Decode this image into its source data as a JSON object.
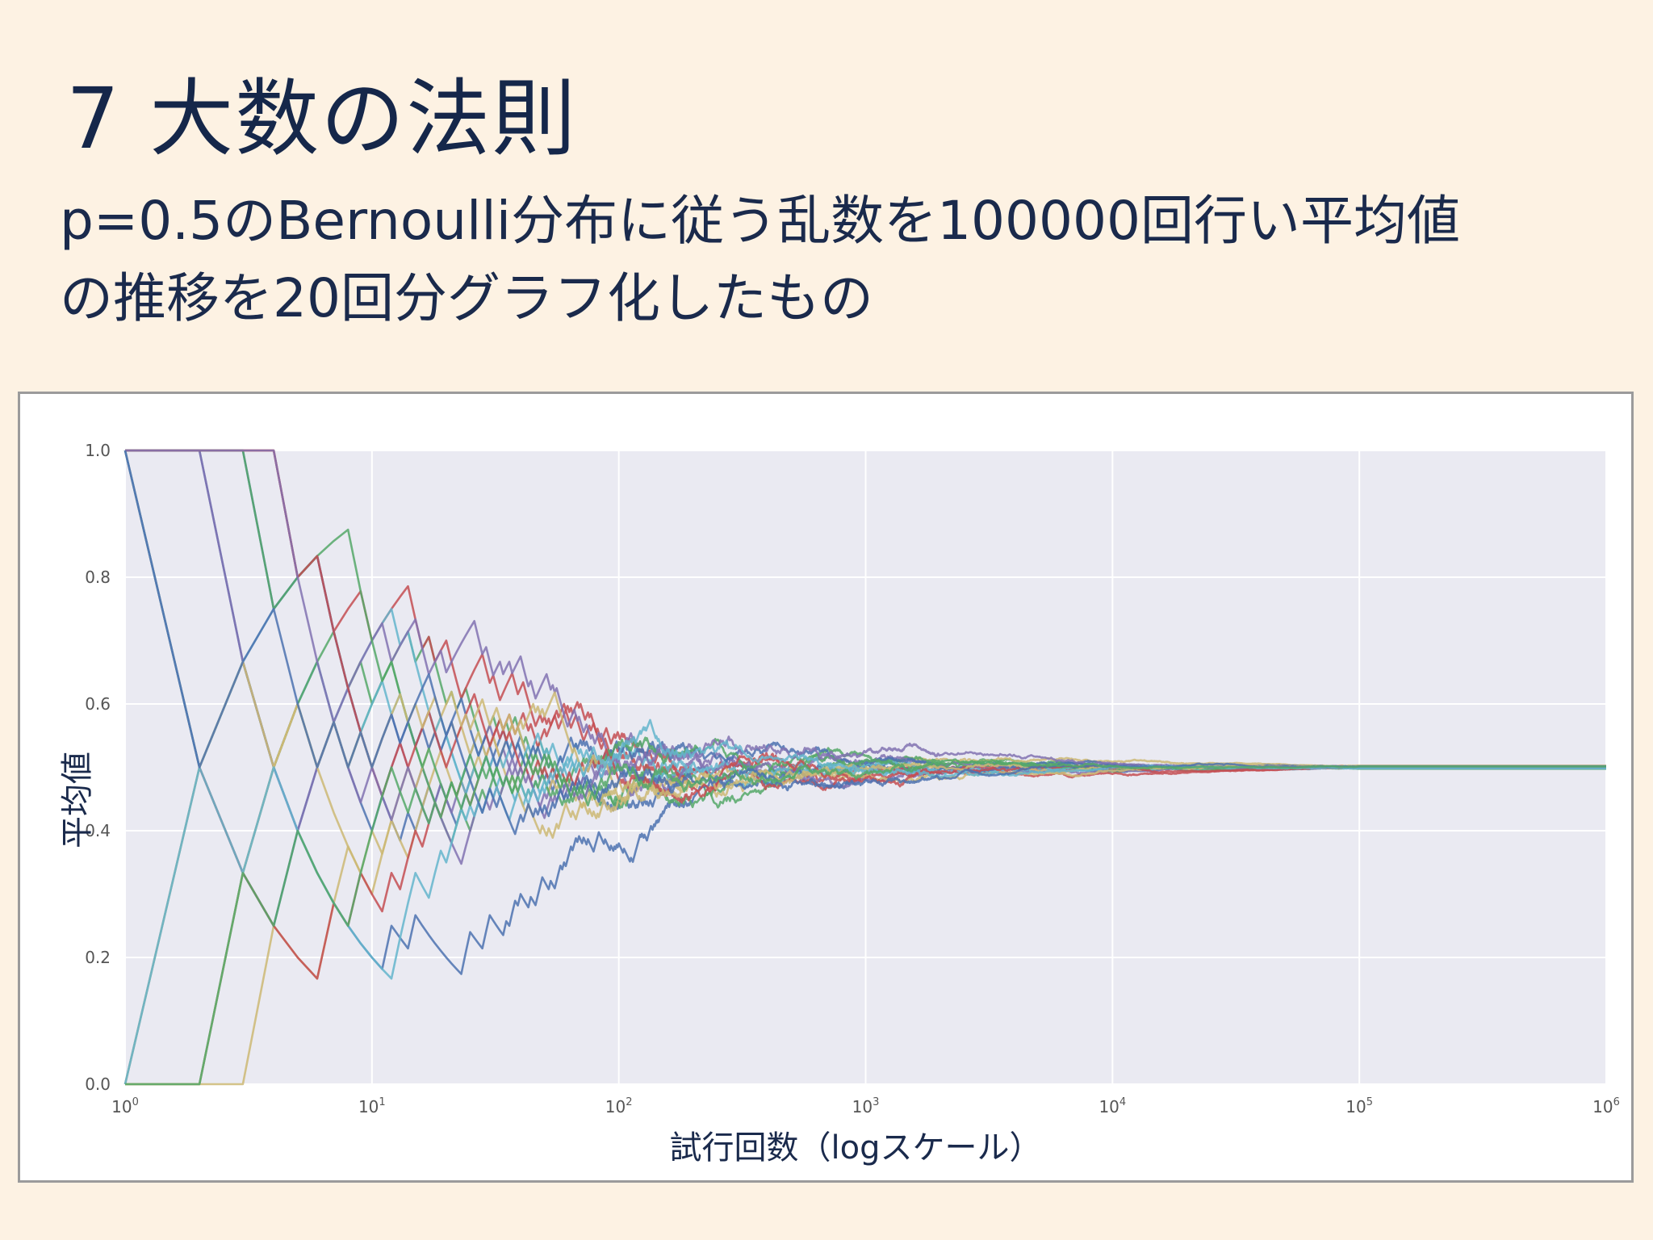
{
  "slide": {
    "title": "7 大数の法則",
    "subtitle_line1": "p=0.5のBernoulli分布に従う乱数を100000回行い平均値",
    "subtitle_line2": "の推移を20回分グラフ化したもの"
  },
  "chart_data": {
    "type": "line",
    "xlabel": "試行回数（logスケール）",
    "ylabel": "平均値",
    "x_scale": "log",
    "xlim": [
      1,
      1000000
    ],
    "ylim": [
      0.0,
      1.0
    ],
    "grid": true,
    "legend": "none",
    "x_ticks": [
      {
        "base": "10",
        "exp": "0"
      },
      {
        "base": "10",
        "exp": "1"
      },
      {
        "base": "10",
        "exp": "2"
      },
      {
        "base": "10",
        "exp": "3"
      },
      {
        "base": "10",
        "exp": "4"
      },
      {
        "base": "10",
        "exp": "5"
      },
      {
        "base": "10",
        "exp": "6"
      }
    ],
    "y_ticks": [
      "0.0",
      "0.2",
      "0.4",
      "0.6",
      "0.8",
      "1.0"
    ],
    "n_runs": 20,
    "trials_per_run": 100000,
    "p": 0.5,
    "colors": [
      "#4c72b0",
      "#55a868",
      "#c44e52",
      "#8172b2",
      "#ccb974",
      "#64b5cd"
    ],
    "plot_bg": "#eaeaf2"
  }
}
